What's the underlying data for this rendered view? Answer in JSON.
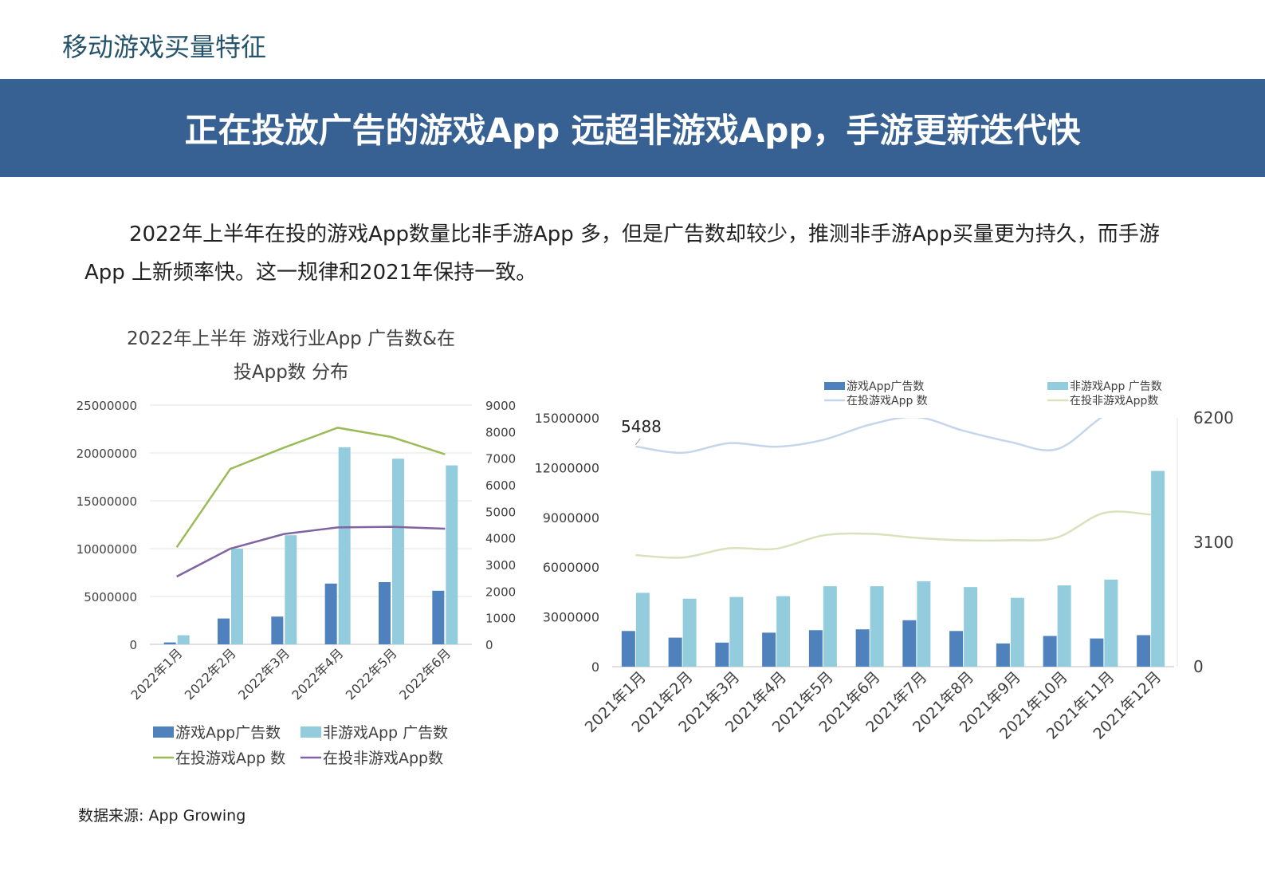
{
  "header": {
    "section_title": "移动游戏买量特征",
    "banner_title": "正在投放广告的游戏App 远超非游戏App，手游更新迭代快"
  },
  "paragraph": "2022年上半年在投的游戏App数量比非手游App 多，但是广告数却较少，推测非手游App买量更为持久，而手游App 上新频率快。这一规律和2021年保持一致。",
  "source": "数据来源: App Growing",
  "colors": {
    "game_ads": "#4f81bd",
    "nongame_ads": "#93cddd",
    "left_game_apps": "#9bbb59",
    "left_nongame_apps": "#8064a2",
    "right_game_apps": "#c5d5ea",
    "right_nongame_apps": "#d6e3bc"
  },
  "chart_data": [
    {
      "type": "bar",
      "title_line1": "2022年上半年  游戏行业App 广告数&在",
      "title_line2": "投App数 分布",
      "categories": [
        "2022年1月",
        "2022年2月",
        "2022年3月",
        "2022年4月",
        "2022年5月",
        "2022年6月"
      ],
      "y_left": {
        "ticks": [
          "25000000",
          "20000000",
          "15000000",
          "10000000",
          "5000000",
          "0"
        ],
        "range": [
          0,
          25000000
        ]
      },
      "y_right": {
        "ticks": [
          "9000",
          "8000",
          "7000",
          "6000",
          "5000",
          "4000",
          "3000",
          "2000",
          "1000",
          "0"
        ],
        "range": [
          0,
          9000
        ]
      },
      "bar_series": [
        {
          "name": "游戏App广告数",
          "values": [
            200000,
            2700000,
            2900000,
            6350000,
            6500000,
            5600000
          ]
        },
        {
          "name": "非游戏App 广告数",
          "values": [
            950000,
            10000000,
            11400000,
            20600000,
            19400000,
            18700000
          ]
        }
      ],
      "line_series": [
        {
          "name": "在投游戏App 数",
          "values": [
            3650,
            6600,
            7400,
            8150,
            7800,
            7150
          ]
        },
        {
          "name": "在投非游戏App数",
          "values": [
            2550,
            3600,
            4150,
            4400,
            4420,
            4350
          ]
        }
      ],
      "legend": [
        "游戏App广告数",
        "非游戏App 广告数",
        "在投游戏App 数",
        "在投非游戏App数"
      ],
      "legend_position": "bottom"
    },
    {
      "type": "bar",
      "categories": [
        "2021年1月",
        "2021年2月",
        "2021年3月",
        "2021年4月",
        "2021年5月",
        "2021年6月",
        "2021年7月",
        "2021年8月",
        "2021年9月",
        "2021年10月",
        "2021年11月",
        "2021年12月"
      ],
      "y_left": {
        "ticks": [
          "15000000",
          "12000000",
          "9000000",
          "6000000",
          "3000000",
          "0"
        ],
        "range": [
          0,
          15000000
        ]
      },
      "y_right": {
        "ticks": [
          "6200",
          "3100",
          "0"
        ],
        "range": [
          0,
          6200
        ]
      },
      "bar_series": [
        {
          "name": "游戏App广告数",
          "values": [
            2150000,
            1750000,
            1450000,
            2050000,
            2200000,
            2250000,
            2800000,
            2150000,
            1400000,
            1850000,
            1700000,
            1900000
          ]
        },
        {
          "name": "非游戏App 广告数",
          "values": [
            4450000,
            4100000,
            4200000,
            4250000,
            4850000,
            4850000,
            5150000,
            4800000,
            4150000,
            4900000,
            5250000,
            11800000
          ]
        }
      ],
      "line_series": [
        {
          "name": "在投游戏App 数",
          "values": [
            5488,
            5330,
            5570,
            5480,
            5650,
            6030,
            6220,
            5880,
            5600,
            5420,
            6250,
            6800
          ]
        },
        {
          "name": "在投非游戏App数",
          "values": [
            2780,
            2720,
            2950,
            2940,
            3270,
            3310,
            3210,
            3150,
            3150,
            3220,
            3830,
            3790
          ]
        }
      ],
      "data_label": "5488",
      "legend": [
        "游戏App广告数",
        "非游戏App 广告数",
        "在投游戏App 数",
        "在投非游戏App数"
      ],
      "legend_position": "top"
    }
  ]
}
